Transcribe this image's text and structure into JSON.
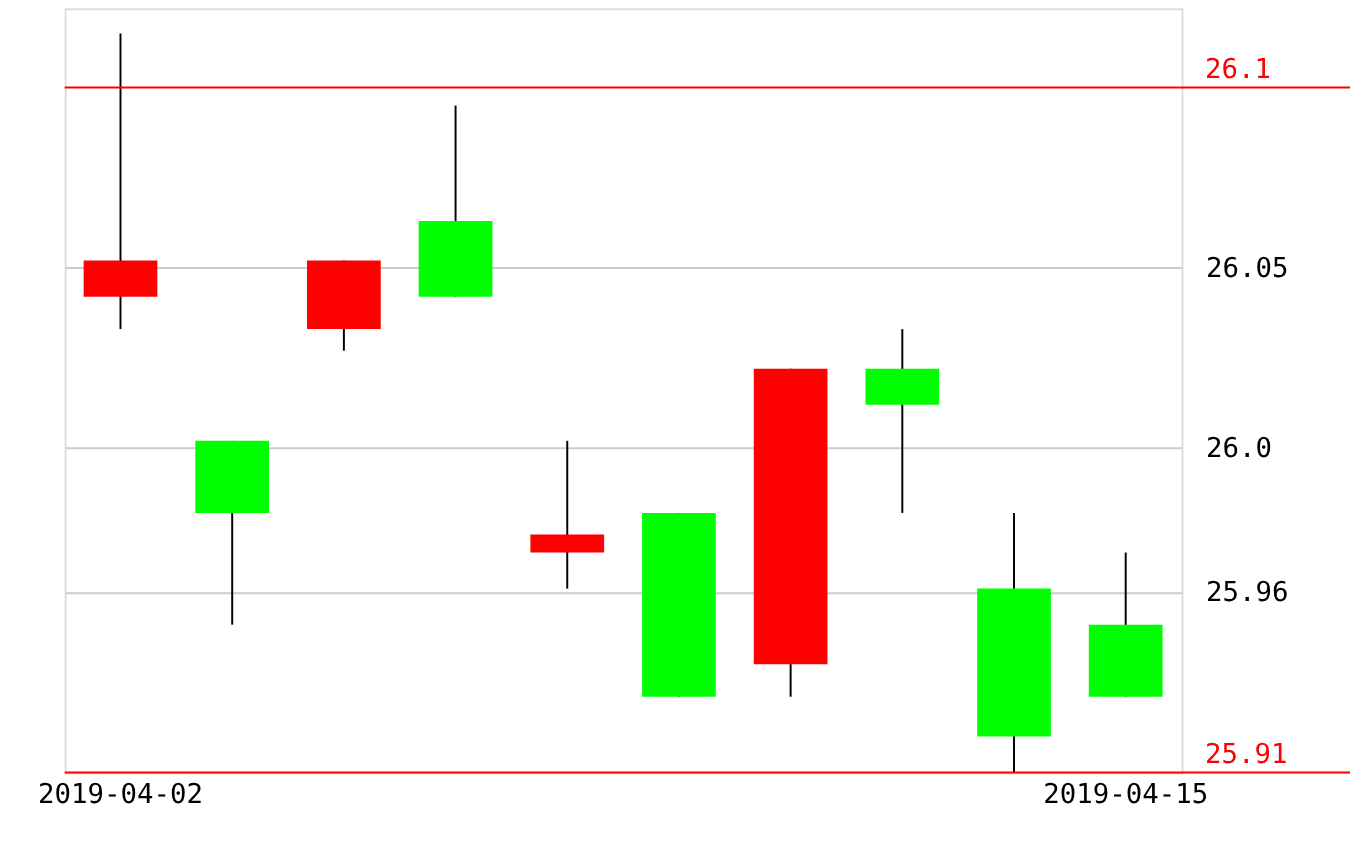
{
  "chart_data": {
    "type": "candlestick",
    "categories": [
      "2019-04-02",
      null,
      null,
      null,
      null,
      null,
      null,
      null,
      null,
      "2019-04-15"
    ],
    "ohlc": [
      [
        26.052,
        26.115,
        26.033,
        26.042
      ],
      [
        25.982,
        26.002,
        25.951,
        26.002
      ],
      [
        26.052,
        26.052,
        26.027,
        26.033
      ],
      [
        26.042,
        26.095,
        26.042,
        26.063
      ],
      [
        25.976,
        26.002,
        25.961,
        25.971
      ],
      [
        25.931,
        25.982,
        25.931,
        25.982
      ],
      [
        26.022,
        26.022,
        25.931,
        25.94
      ],
      [
        26.012,
        26.033,
        25.982,
        26.022
      ],
      [
        25.92,
        25.982,
        25.91,
        25.961
      ],
      [
        25.931,
        25.971,
        25.931,
        25.951
      ]
    ],
    "colors": [
      "#ff0000",
      "#00ff00",
      "#ff0000",
      "#00ff00",
      "#ff0000",
      "#00ff00",
      "#ff0000",
      "#00ff00",
      "#00ff00",
      "#00ff00"
    ],
    "ylim": [
      25.91,
      26.122
    ],
    "yticks": [
      26.05,
      {
        "value": 26.0,
        "label": "26.0"
      },
      25.96
    ],
    "grid": "y",
    "ref_lines": [
      {
        "axis": "y",
        "value": 26.1,
        "label": "26.1",
        "color": "#ff0000"
      },
      {
        "axis": "y",
        "value": 25.91,
        "label": "25.91",
        "color": "#ff0000"
      }
    ]
  }
}
